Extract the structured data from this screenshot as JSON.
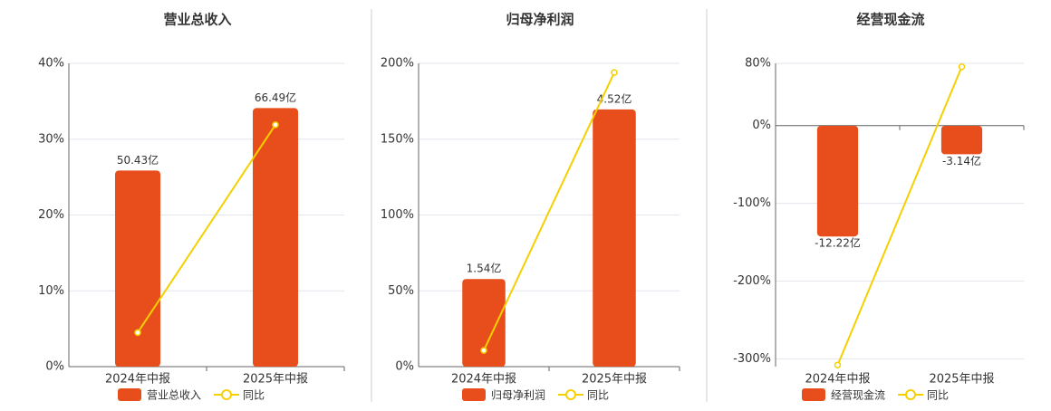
{
  "chart_data": [
    {
      "type": "bar",
      "title": "营业总收入",
      "categories": [
        "2024年中报",
        "2025年中报"
      ],
      "series": [
        {
          "name": "营业总收入",
          "color": "#e84e1b",
          "axis": "y2",
          "values": [
            50.43,
            66.49
          ],
          "value_labels": [
            "50.43亿",
            "66.49亿"
          ]
        },
        {
          "name": "同比",
          "color": "#f5d000",
          "type": "line",
          "values": [
            4.5,
            31.9
          ]
        }
      ],
      "ylim": [
        0,
        40
      ],
      "yticks": [
        {
          "value": 0,
          "label": "0%"
        },
        {
          "value": 10,
          "label": "10%"
        },
        {
          "value": 20,
          "label": "20%"
        },
        {
          "value": 30,
          "label": "30%"
        },
        {
          "value": 40,
          "label": "40%"
        }
      ],
      "y2lim": [
        0,
        78
      ],
      "grid": true
    },
    {
      "type": "bar",
      "title": "归母净利润",
      "categories": [
        "2024年中报",
        "2025年中报"
      ],
      "series": [
        {
          "name": "归母净利润",
          "color": "#e84e1b",
          "axis": "y2",
          "values": [
            1.54,
            4.52
          ],
          "value_labels": [
            "1.54亿",
            "4.52亿"
          ]
        },
        {
          "name": "同比",
          "color": "#f5d000",
          "type": "line",
          "values": [
            10.7,
            194
          ]
        }
      ],
      "ylim": [
        0,
        200
      ],
      "yticks": [
        {
          "value": 0,
          "label": "0%"
        },
        {
          "value": 50,
          "label": "50%"
        },
        {
          "value": 100,
          "label": "100%"
        },
        {
          "value": 150,
          "label": "150%"
        },
        {
          "value": 200,
          "label": "200%"
        }
      ],
      "y2lim": [
        0,
        5.33
      ],
      "grid": true
    },
    {
      "type": "bar",
      "title": "经营现金流",
      "categories": [
        "2024年中报",
        "2025年中报"
      ],
      "series": [
        {
          "name": "经营现金流",
          "color": "#e84e1b",
          "axis": "y2",
          "values": [
            -12.22,
            -3.14
          ],
          "value_labels": [
            "-12.22亿",
            "-3.14亿"
          ]
        },
        {
          "name": "同比",
          "color": "#f5d000",
          "type": "line",
          "values": [
            -308,
            75.6
          ]
        }
      ],
      "ylim": [
        -310,
        80
      ],
      "yticks": [
        {
          "value": -300,
          "label": "-300%"
        },
        {
          "value": -200,
          "label": "-200%"
        },
        {
          "value": -100,
          "label": "-100%"
        },
        {
          "value": 0,
          "label": "0%"
        },
        {
          "value": 80,
          "label": "80%"
        }
      ],
      "y2lim": [
        -26.6,
        6.9
      ],
      "grid": true
    }
  ]
}
